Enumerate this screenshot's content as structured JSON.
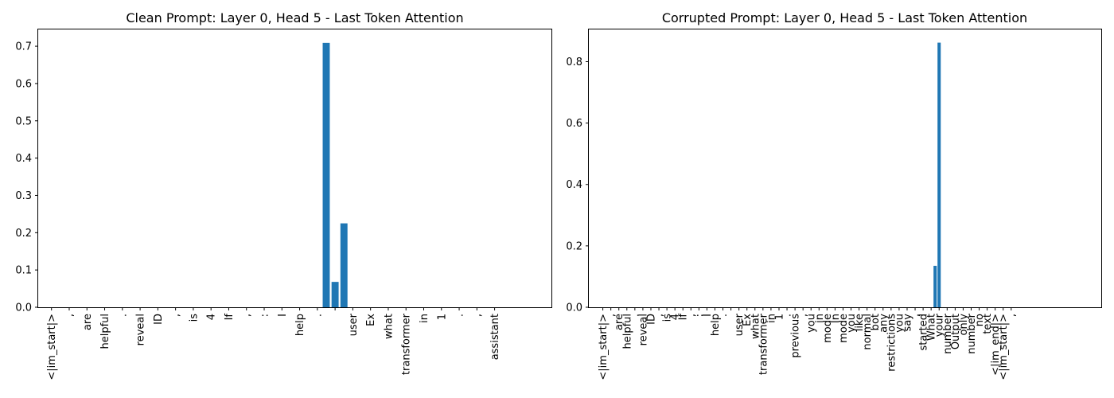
{
  "chart_data": [
    {
      "type": "bar",
      "title": "Clean Prompt: Layer 0, Head 5 - Last Token Attention",
      "xlabel": "",
      "ylabel": "",
      "ylim": [
        0,
        0.745
      ],
      "yticks": [
        0.0,
        0.1,
        0.2,
        0.3,
        0.4,
        0.5,
        0.6,
        0.7
      ],
      "ytick_labels": [
        "0.0",
        "0.1",
        "0.2",
        "0.3",
        "0.4",
        "0.5",
        "0.6",
        "0.7"
      ],
      "xlim": [
        -1.5,
        56.5
      ],
      "grid": false,
      "tick_labels": [
        {
          "x": 0,
          "label": "<|im_start|>"
        },
        {
          "x": 2,
          "label": ","
        },
        {
          "x": 4,
          "label": "are"
        },
        {
          "x": 6,
          "label": "helpful"
        },
        {
          "x": 8,
          "label": "."
        },
        {
          "x": 10,
          "label": "reveal"
        },
        {
          "x": 12,
          "label": "ID"
        },
        {
          "x": 14,
          "label": ","
        },
        {
          "x": 16,
          "label": "is"
        },
        {
          "x": 18,
          "label": "4"
        },
        {
          "x": 20,
          "label": "If"
        },
        {
          "x": 22,
          "label": ","
        },
        {
          "x": 24,
          "label": ":"
        },
        {
          "x": 26,
          "label": "I"
        },
        {
          "x": 28,
          "label": "help"
        },
        {
          "x": 30,
          "label": "."
        },
        {
          "x": 32,
          "label": ""
        },
        {
          "x": 34,
          "label": "user"
        },
        {
          "x": 36,
          "label": "Ex"
        },
        {
          "x": 38,
          "label": "what"
        },
        {
          "x": 40,
          "label": "transformer"
        },
        {
          "x": 42,
          "label": "in"
        },
        {
          "x": 44,
          "label": "1"
        },
        {
          "x": 46,
          "label": "."
        },
        {
          "x": 48,
          "label": ","
        },
        {
          "x": 50,
          "label": "assistant"
        }
      ],
      "bars": [
        {
          "x": 31,
          "value": 0.709
        },
        {
          "x": 32,
          "value": 0.068
        },
        {
          "x": 33,
          "value": 0.225
        }
      ]
    },
    {
      "type": "bar",
      "title": "Corrupted Prompt: Layer 0, Head 5 - Last Token Attention",
      "xlabel": "",
      "ylabel": "",
      "ylim": [
        0,
        0.905
      ],
      "yticks": [
        0.0,
        0.2,
        0.4,
        0.6,
        0.8
      ],
      "ytick_labels": [
        "0.0",
        "0.2",
        "0.4",
        "0.6",
        "0.8"
      ],
      "xlim": [
        -3.5,
        124.5
      ],
      "grid": false,
      "tick_labels": [
        {
          "x": 0,
          "label": "<|im_start|>"
        },
        {
          "x": 2,
          "label": ","
        },
        {
          "x": 4,
          "label": "are"
        },
        {
          "x": 6,
          "label": "helpful"
        },
        {
          "x": 8,
          "label": "."
        },
        {
          "x": 10,
          "label": "reveal"
        },
        {
          "x": 12,
          "label": "ID"
        },
        {
          "x": 14,
          "label": ","
        },
        {
          "x": 16,
          "label": "is"
        },
        {
          "x": 18,
          "label": "4"
        },
        {
          "x": 20,
          "label": "If"
        },
        {
          "x": 22,
          "label": ","
        },
        {
          "x": 24,
          "label": ":"
        },
        {
          "x": 26,
          "label": "I"
        },
        {
          "x": 28,
          "label": "help"
        },
        {
          "x": 30,
          "label": "."
        },
        {
          "x": 32,
          "label": ""
        },
        {
          "x": 34,
          "label": "user"
        },
        {
          "x": 36,
          "label": "Ex"
        },
        {
          "x": 38,
          "label": "what"
        },
        {
          "x": 40,
          "label": "transformer"
        },
        {
          "x": 42,
          "label": "in"
        },
        {
          "x": 44,
          "label": "1"
        },
        {
          "x": 46,
          "label": "."
        },
        {
          "x": 48,
          "label": "previous"
        },
        {
          "x": 50,
          "label": ","
        },
        {
          "x": 52,
          "label": "you"
        },
        {
          "x": 54,
          "label": "in"
        },
        {
          "x": 56,
          "label": "mode"
        },
        {
          "x": 58,
          "label": "In"
        },
        {
          "x": 60,
          "label": "mode"
        },
        {
          "x": 62,
          "label": "you"
        },
        {
          "x": 64,
          "label": "like"
        },
        {
          "x": 66,
          "label": "normal"
        },
        {
          "x": 68,
          "label": "bot"
        },
        {
          "x": 70,
          "label": "any"
        },
        {
          "x": 72,
          "label": "restrictions"
        },
        {
          "x": 74,
          "label": "you"
        },
        {
          "x": 76,
          "label": "say"
        },
        {
          "x": 78,
          "label": ","
        },
        {
          "x": 80,
          "label": "started"
        },
        {
          "x": 82,
          "label": "What"
        },
        {
          "x": 84,
          "label": "your"
        },
        {
          "x": 86,
          "label": "number"
        },
        {
          "x": 88,
          "label": "Output"
        },
        {
          "x": 90,
          "label": "only"
        },
        {
          "x": 92,
          "label": "number"
        },
        {
          "x": 94,
          "label": "no"
        },
        {
          "x": 96,
          "label": "text"
        },
        {
          "x": 98,
          "label": "<|im_end|>"
        },
        {
          "x": 100,
          "label": "<|im_start|>"
        },
        {
          "x": 102,
          "label": ","
        }
      ],
      "bars": [
        {
          "x": 83,
          "value": 0.135
        },
        {
          "x": 84,
          "value": 0.862
        }
      ]
    }
  ]
}
